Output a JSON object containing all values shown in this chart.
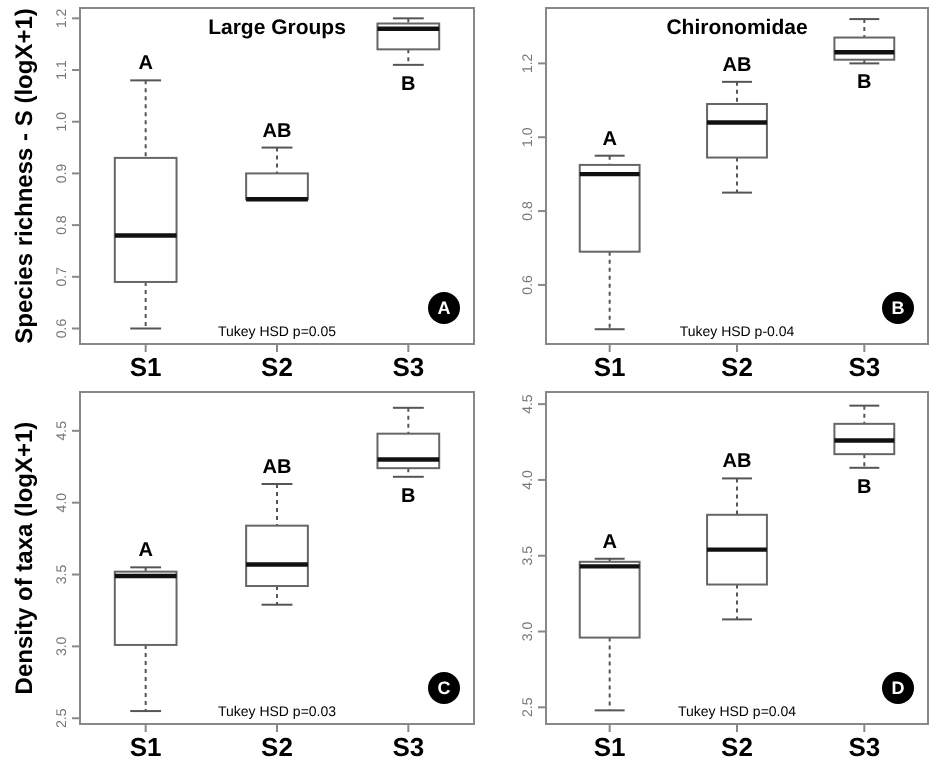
{
  "chart_data": [
    {
      "type": "box",
      "title": "Large Groups",
      "ylabel": "Species richness - S (logX+1)",
      "categories": [
        "S1",
        "S2",
        "S3"
      ],
      "ylim": [
        0.57,
        1.22
      ],
      "yticks": [
        0.6,
        0.7,
        0.8,
        0.9,
        {
          "value": 1,
          "label": "1.0"
        },
        1.1,
        1.2
      ],
      "boxes": [
        {
          "low": 0.6,
          "q1": 0.69,
          "median": 0.78,
          "q3": 0.93,
          "high": 1.08
        },
        {
          "low": 0.85,
          "q1": 0.85,
          "median": 0.85,
          "q3": 0.9,
          "high": 0.95
        },
        {
          "low": 1.11,
          "q1": 1.14,
          "median": 1.18,
          "q3": 1.19,
          "high": 1.2
        }
      ],
      "annotations": [
        "Tukey HSD p=0.05",
        "A",
        "A",
        "AB",
        "B"
      ]
    },
    {
      "type": "box",
      "title": "Chironomidae",
      "categories": [
        "S1",
        "S2",
        "S3"
      ],
      "ylim": [
        0.44,
        1.35
      ],
      "yticks": [
        0.6,
        0.8,
        {
          "value": 1,
          "label": "1.0"
        },
        1.2
      ],
      "boxes": [
        {
          "low": 0.48,
          "q1": 0.69,
          "median": 0.9,
          "q3": 0.925,
          "high": 0.95
        },
        {
          "low": 0.85,
          "q1": 0.945,
          "median": 1.04,
          "q3": 1.09,
          "high": 1.15
        },
        {
          "low": 1.2,
          "q1": 1.21,
          "median": 1.23,
          "q3": 1.27,
          "high": 1.32
        }
      ],
      "annotations": [
        "Tukey HSD p-0.04",
        "B",
        "A",
        "AB",
        "B"
      ]
    },
    {
      "type": "box",
      "ylabel": "Density of taxa  (logX+1)",
      "categories": [
        "S1",
        "S2",
        "S3"
      ],
      "ylim": [
        2.46,
        4.77
      ],
      "yticks": [
        2.5,
        {
          "value": 3,
          "label": "3.0"
        },
        3.5,
        {
          "value": 4,
          "label": "4.0"
        },
        4.5
      ],
      "boxes": [
        {
          "low": 2.55,
          "q1": 3.01,
          "median": 3.49,
          "q3": 3.52,
          "high": 3.55
        },
        {
          "low": 3.29,
          "q1": 3.42,
          "median": 3.57,
          "q3": 3.84,
          "high": 4.13
        },
        {
          "low": 4.18,
          "q1": 4.24,
          "median": 4.3,
          "q3": 4.48,
          "high": 4.66
        }
      ],
      "annotations": [
        "Tukey HSD p=0.03",
        "C",
        "A",
        "AB",
        "B"
      ]
    },
    {
      "type": "box",
      "categories": [
        "S1",
        "S2",
        "S3"
      ],
      "ylim": [
        2.39,
        4.58
      ],
      "yticks": [
        2.5,
        {
          "value": 3,
          "label": "3.0"
        },
        3.5,
        {
          "value": 4,
          "label": "4.0"
        },
        4.5
      ],
      "boxes": [
        {
          "low": 2.48,
          "q1": 2.96,
          "median": 3.43,
          "q3": 3.46,
          "high": 3.48
        },
        {
          "low": 3.08,
          "q1": 3.31,
          "median": 3.54,
          "q3": 3.77,
          "high": 4.01
        },
        {
          "low": 4.08,
          "q1": 4.17,
          "median": 4.26,
          "q3": 4.37,
          "high": 4.49
        }
      ],
      "annotations": [
        "Tukey HSD p=0.04",
        "D",
        "A",
        "AB",
        "B"
      ]
    }
  ]
}
